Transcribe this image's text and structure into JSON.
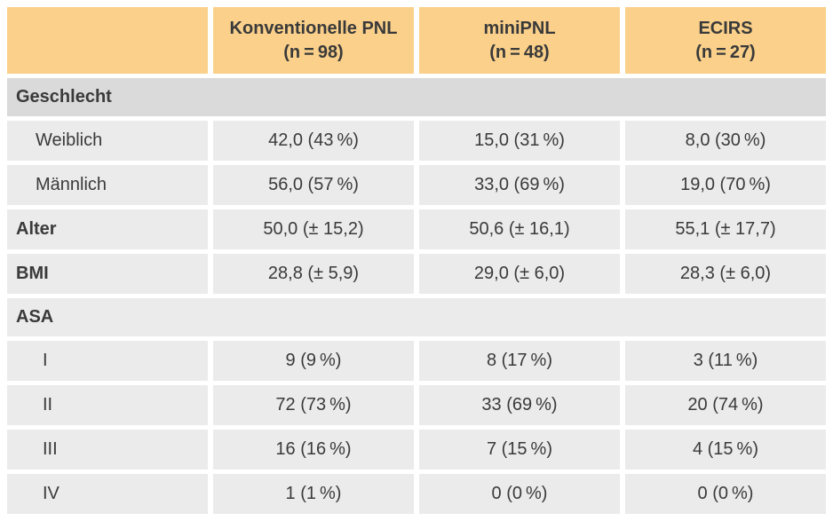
{
  "colors": {
    "header_bg": "#FAD08A",
    "section_dark_bg": "#DADADA",
    "row_bg": "#EBEBEB",
    "gutter": "#FFFFFF",
    "text": "#3A3A3A"
  },
  "table": {
    "header": {
      "empty": "",
      "cols": [
        {
          "title": "Konventionelle PNL",
          "n": "(n = 98)"
        },
        {
          "title": "miniPNL",
          "n": "(n = 48)"
        },
        {
          "title": "ECIRS",
          "n": "(n = 27)"
        }
      ]
    },
    "rows": [
      {
        "kind": "section-dark",
        "label": "Geschlecht"
      },
      {
        "kind": "data-indent",
        "label": "Weiblich",
        "values": [
          "42,0 (43 %)",
          "15,0 (31 %)",
          "8,0 (30 %)"
        ]
      },
      {
        "kind": "data-indent",
        "label": "Männlich",
        "values": [
          "56,0 (57 %)",
          "33,0 (69 %)",
          "19,0 (70 %)"
        ]
      },
      {
        "kind": "data-bold",
        "label": "Alter",
        "values": [
          "50,0 (± 15,2)",
          "50,6 (± 16,1)",
          "55,1 (± 17,7)"
        ]
      },
      {
        "kind": "data-bold",
        "label": "BMI",
        "values": [
          "28,8 (± 5,9)",
          "29,0 (± 6,0)",
          "28,3 (± 6,0)"
        ]
      },
      {
        "kind": "section-light",
        "label": "ASA"
      },
      {
        "kind": "data-roman",
        "label": "I",
        "values": [
          "9 (9 %)",
          "8 (17 %)",
          "3 (11 %)"
        ]
      },
      {
        "kind": "data-roman",
        "label": "II",
        "values": [
          "72 (73 %)",
          "33 (69 %)",
          "20 (74 %)"
        ]
      },
      {
        "kind": "data-roman",
        "label": "III",
        "values": [
          "16 (16 %)",
          "7 (15 %)",
          "4 (15 %)"
        ]
      },
      {
        "kind": "data-roman",
        "label": "IV",
        "values": [
          "1 (1 %)",
          "0 (0 %)",
          "0 (0 %)"
        ]
      }
    ]
  }
}
